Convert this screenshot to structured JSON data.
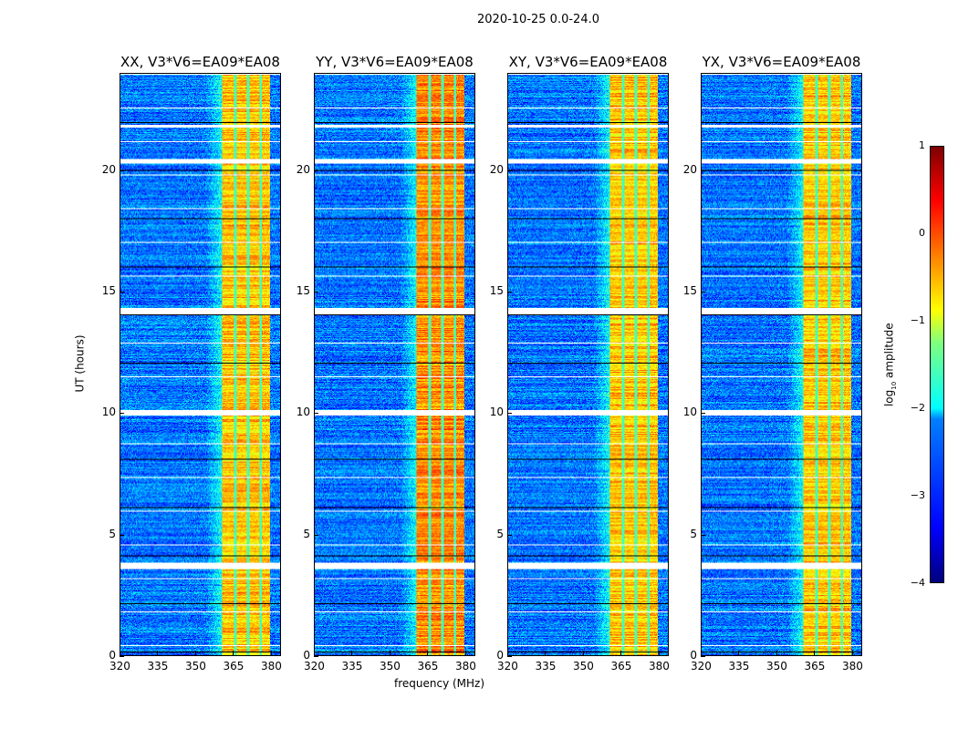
{
  "chart_data": {
    "type": "heatmap",
    "title": "2020-10-25 0.0-24.0",
    "xlabel": "frequency (MHz)",
    "ylabel": "UT (hours)",
    "xlim": [
      320,
      384
    ],
    "ylim": [
      0,
      24
    ],
    "xticks": [
      "320",
      "335",
      "350",
      "365",
      "380"
    ],
    "yticks": [
      "0",
      "5",
      "10",
      "15",
      "20"
    ],
    "panels": [
      {
        "title": "XX, V3*V6=EA09*EA08",
        "band_level": -0.6
      },
      {
        "title": "YY, V3*V6=EA09*EA08",
        "band_level": -0.3
      },
      {
        "title": "XY, V3*V6=EA09*EA08",
        "band_level": -0.6
      },
      {
        "title": "YX, V3*V6=EA09*EA08",
        "band_level": -0.6
      }
    ],
    "rfi_band_mhz": [
      360.5,
      380
    ],
    "rfi_gaps_mhz": [
      366,
      371,
      376
    ],
    "background_level": -2.8,
    "flagged_hours": [
      [
        3.6,
        3.85
      ],
      [
        9.9,
        10.15
      ],
      [
        14.1,
        14.35
      ],
      [
        20.3,
        20.5
      ],
      [
        21.8,
        21.9
      ]
    ],
    "colorbar": {
      "label": "log10 amplitude",
      "label_main": "log",
      "label_sub": "10",
      "label_rest": " amplitude",
      "range": [
        -4,
        1
      ],
      "ticks": [
        "1",
        "0",
        "−1",
        "−2",
        "−3",
        "−4"
      ],
      "colormap": "jet"
    }
  }
}
